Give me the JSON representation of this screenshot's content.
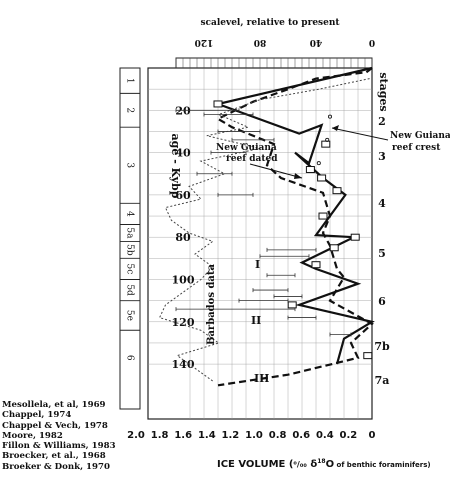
{
  "chart_data": {
    "type": "line",
    "title": "",
    "top_axis": {
      "label": "scalevel, relative to present",
      "ticks": [
        120,
        80,
        40,
        0
      ],
      "range": [
        140,
        0
      ]
    },
    "bottom_axis": {
      "label": "ICE VOLUME (⁰/₀₀ δ¹⁸O of benthic foraminifers)",
      "label_parts": {
        "main": "ICE VOLUME (",
        "unit": "⁰/₀₀",
        "delta": " δ",
        "sup": "18",
        "rest": "O",
        "tail": "of benthic foraminifers)"
      },
      "ticks": [
        "2.0",
        "1.8",
        "1.6",
        "1.4",
        "1.2",
        "1.0",
        "0.8",
        "0.6",
        "0.4",
        "0.2",
        "0"
      ],
      "range": [
        2.0,
        0
      ]
    },
    "y_axis": {
      "label": "age - Kybp",
      "ticks": [
        20,
        40,
        60,
        80,
        100,
        120,
        140
      ],
      "range": [
        0,
        150
      ]
    },
    "stages_label": "stages",
    "stages_right": [
      "2",
      "3",
      "4",
      "5",
      "6",
      "7b",
      "7a"
    ],
    "stage_column": [
      {
        "label": "1",
        "from": 0,
        "to": 12
      },
      {
        "label": "2",
        "from": 12,
        "to": 28
      },
      {
        "label": "3",
        "from": 28,
        "to": 64
      },
      {
        "label": "4",
        "from": 64,
        "to": 74
      },
      {
        "label": "5a",
        "from": 74,
        "to": 82
      },
      {
        "label": "5b",
        "from": 82,
        "to": 90
      },
      {
        "label": "5c",
        "from": 90,
        "to": 100
      },
      {
        "label": "5d",
        "from": 100,
        "to": 110
      },
      {
        "label": "5e",
        "from": 110,
        "to": 124
      },
      {
        "label": "6",
        "from": 124,
        "to": 150
      }
    ],
    "annotations": {
      "ng_crest": "New Guiana reef crest",
      "ng_dated": "New Guiana reef dated",
      "barbados": "Barbados data",
      "roman": [
        "I",
        "II",
        "III"
      ]
    },
    "series": [
      {
        "style": "solid",
        "points": [
          [
            0,
            0
          ],
          [
            17,
            110
          ],
          [
            31,
            52
          ],
          [
            27,
            36
          ],
          [
            45,
            45
          ],
          [
            40,
            55
          ],
          [
            52,
            35
          ],
          [
            60,
            19
          ],
          [
            79,
            40
          ],
          [
            80,
            13
          ],
          [
            92,
            50
          ],
          [
            95,
            40
          ],
          [
            102,
            10
          ],
          [
            112,
            52
          ],
          [
            120,
            0
          ],
          [
            128,
            20
          ],
          [
            140,
            25
          ]
        ]
      },
      {
        "style": "dashed",
        "points": [
          [
            0,
            0
          ],
          [
            2,
            4
          ],
          [
            5,
            40
          ],
          [
            10,
            60
          ],
          [
            16,
            85
          ],
          [
            24,
            110
          ],
          [
            28,
            100
          ],
          [
            36,
            70
          ],
          [
            46,
            75
          ],
          [
            52,
            65
          ],
          [
            59,
            35
          ],
          [
            70,
            30
          ],
          [
            78,
            35
          ],
          [
            84,
            30
          ],
          [
            95,
            25
          ],
          [
            99,
            20
          ],
          [
            110,
            30
          ],
          [
            121,
            0
          ],
          [
            130,
            15
          ],
          [
            137,
            10
          ],
          [
            145,
            60
          ],
          [
            150,
            110
          ]
        ]
      },
      {
        "style": "dotted",
        "points": [
          [
            5,
            0.02
          ],
          [
            10,
            0.45
          ],
          [
            15,
            0.95
          ],
          [
            22,
            1.3
          ],
          [
            28,
            1.05
          ],
          [
            32,
            1.4
          ],
          [
            38,
            0.95
          ],
          [
            44,
            1.45
          ],
          [
            50,
            1.25
          ],
          [
            56,
            1.55
          ],
          [
            62,
            1.45
          ],
          [
            66,
            1.75
          ],
          [
            72,
            1.7
          ],
          [
            78,
            1.55
          ],
          [
            82,
            1.35
          ],
          [
            88,
            1.5
          ],
          [
            94,
            1.35
          ],
          [
            100,
            1.45
          ],
          [
            106,
            1.6
          ],
          [
            112,
            1.75
          ],
          [
            118,
            1.8
          ],
          [
            124,
            1.45
          ],
          [
            130,
            1.3
          ],
          [
            136,
            1.65
          ],
          [
            142,
            1.5
          ],
          [
            148,
            1.35
          ]
        ]
      }
    ],
    "data_boxes": [
      [
        17,
        110
      ],
      [
        36,
        33
      ],
      [
        48,
        44
      ],
      [
        52,
        36
      ],
      [
        58,
        25
      ],
      [
        70,
        35
      ],
      [
        80,
        12
      ],
      [
        85,
        27
      ],
      [
        93,
        40
      ],
      [
        112,
        57
      ],
      [
        136,
        3
      ]
    ],
    "small_marks": [
      [
        23,
        30
      ],
      [
        34,
        32
      ],
      [
        45,
        38
      ]
    ],
    "error_bars": [
      [
        22,
        85,
        120
      ],
      [
        20,
        95,
        140
      ],
      [
        30,
        80,
        110
      ],
      [
        34,
        70,
        100
      ],
      [
        40,
        90,
        115
      ],
      [
        50,
        100,
        125
      ],
      [
        60,
        85,
        110
      ],
      [
        86,
        40,
        75
      ],
      [
        89,
        45,
        80
      ],
      [
        98,
        55,
        75
      ],
      [
        105,
        60,
        85
      ],
      [
        108,
        50,
        70
      ],
      [
        110,
        60,
        95
      ],
      [
        114,
        55,
        140
      ],
      [
        118,
        40,
        60
      ],
      [
        126,
        15,
        30
      ]
    ]
  },
  "references": [
    "Mesollela, et al, 1969",
    "Chappel, 1974",
    "Chappel & Vech, 1978",
    "Moore, 1982",
    "Fillon & Williams, 1983",
    "Broecker, et al., 1968",
    "Broeker & Donk, 1970"
  ]
}
